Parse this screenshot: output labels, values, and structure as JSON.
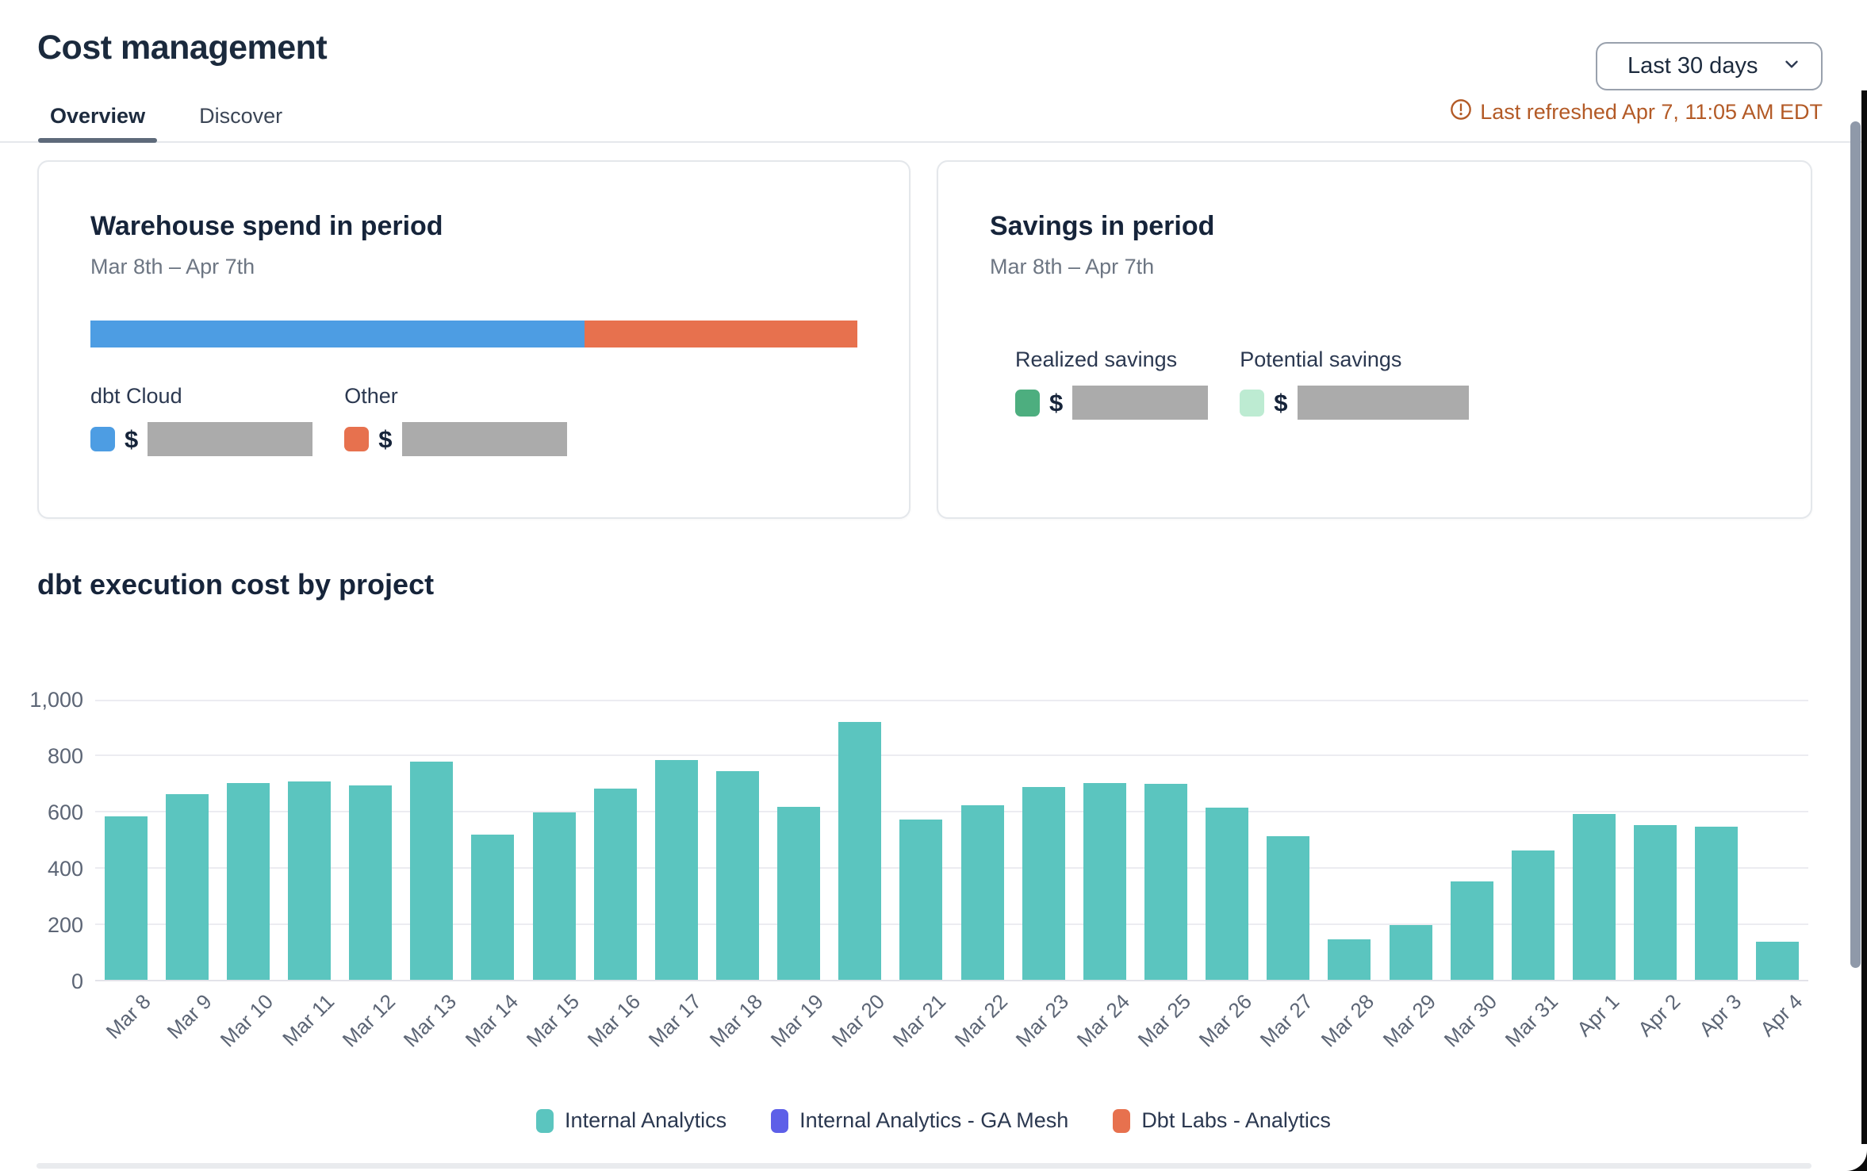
{
  "header": {
    "title": "Cost management",
    "period_selector": {
      "value": "Last 30 days"
    },
    "last_refreshed": "Last refreshed Apr 7, 11:05 AM EDT",
    "tabs": [
      {
        "label": "Overview",
        "active": true
      },
      {
        "label": "Discover",
        "active": false
      }
    ]
  },
  "warehouse_card": {
    "title": "Warehouse spend in period",
    "subtitle": "Mar 8th – Apr 7th",
    "currency_symbol": "$",
    "segments": [
      {
        "name": "dbt Cloud",
        "color": "#4d9de3",
        "pct": 64.4,
        "value_redacted": true
      },
      {
        "name": "Other",
        "color": "#e7714e",
        "pct": 35.6,
        "value_redacted": true
      }
    ]
  },
  "savings_card": {
    "title": "Savings in period",
    "subtitle": "Mar 8th – Apr 7th",
    "currency_symbol": "$",
    "items": [
      {
        "name": "Realized savings",
        "color": "#4dae7f",
        "value_redacted": true
      },
      {
        "name": "Potential savings",
        "color": "#bdebd2",
        "value_redacted": true
      }
    ]
  },
  "chart_data": {
    "type": "bar",
    "title": "dbt execution cost by project",
    "categories": [
      "Mar 8",
      "Mar 9",
      "Mar 10",
      "Mar 11",
      "Mar 12",
      "Mar 13",
      "Mar 14",
      "Mar 15",
      "Mar 16",
      "Mar 17",
      "Mar 18",
      "Mar 19",
      "Mar 20",
      "Mar 21",
      "Mar 22",
      "Mar 23",
      "Mar 24",
      "Mar 25",
      "Mar 26",
      "Mar 27",
      "Mar 28",
      "Mar 29",
      "Mar 30",
      "Mar 31",
      "Apr 1",
      "Apr 2",
      "Apr 3",
      "Apr 4"
    ],
    "series": [
      {
        "name": "Internal Analytics",
        "color": "#5bc5bf",
        "values": [
          580,
          660,
          700,
          705,
          690,
          775,
          515,
          595,
          680,
          780,
          740,
          615,
          915,
          570,
          620,
          685,
          700,
          695,
          610,
          510,
          145,
          195,
          350,
          460,
          590,
          550,
          545,
          135
        ]
      },
      {
        "name": "Internal Analytics - GA Mesh",
        "color": "#5d5fe8",
        "values": []
      },
      {
        "name": "Dbt Labs - Analytics",
        "color": "#e7714e",
        "values": []
      }
    ],
    "xlabel": "",
    "ylabel": "",
    "ylim": [
      0,
      1000
    ],
    "yticks": [
      "1,000",
      "800",
      "600",
      "400",
      "200",
      "0"
    ],
    "grid": true,
    "legend_position": "bottom"
  }
}
